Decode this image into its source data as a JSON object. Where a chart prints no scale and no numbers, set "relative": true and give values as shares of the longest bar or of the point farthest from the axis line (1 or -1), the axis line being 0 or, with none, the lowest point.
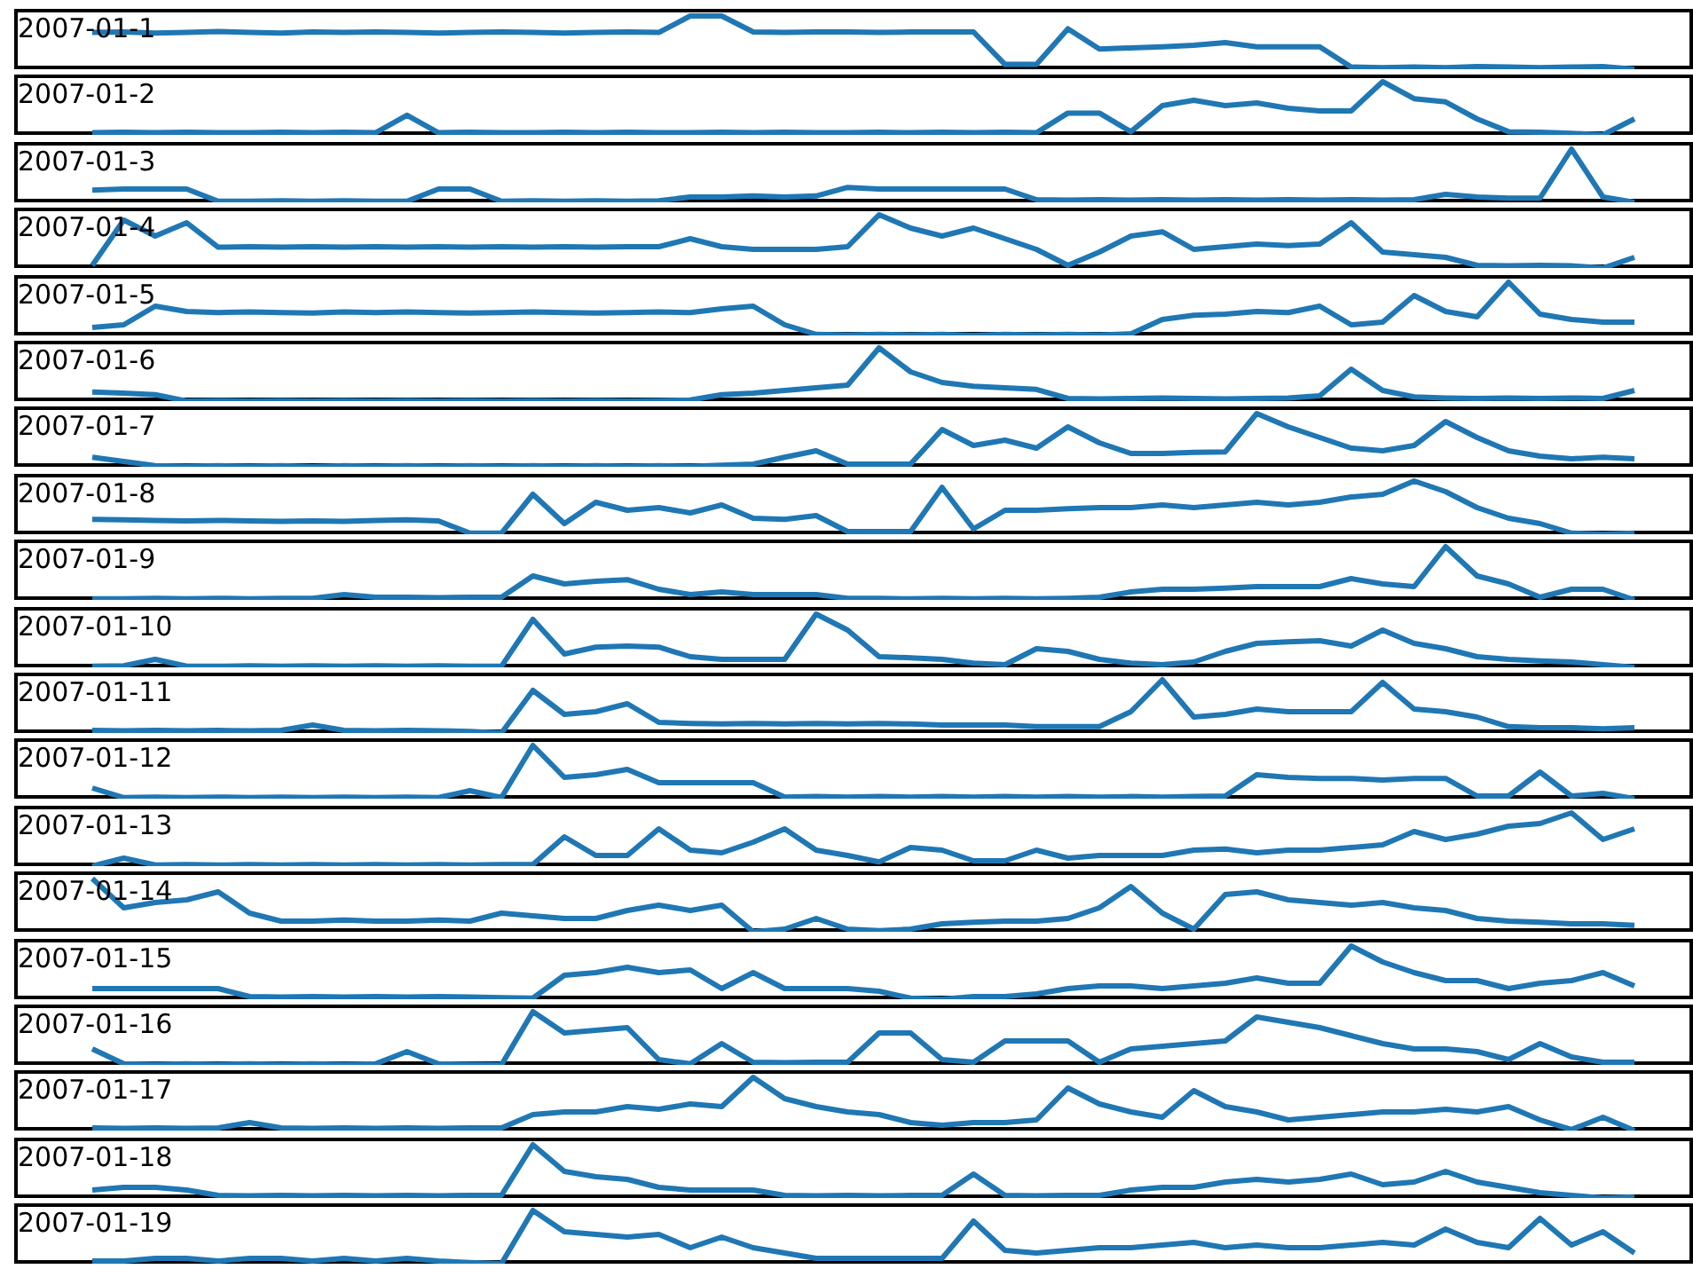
{
  "chart_data": [
    {
      "type": "line",
      "title": "2007-01-1",
      "relative": true,
      "color": "#1f77b4",
      "categories": [
        null,
        null,
        null,
        null,
        null,
        null,
        null,
        null,
        null,
        null,
        null,
        null,
        null,
        null,
        null,
        null,
        null,
        null,
        null,
        null,
        null,
        null,
        null,
        null,
        null,
        null,
        null,
        null,
        null,
        null,
        null,
        null,
        null,
        null,
        null,
        null,
        null,
        null,
        null,
        null,
        null,
        null,
        null,
        null,
        null,
        null,
        null,
        null,
        null,
        null
      ],
      "values": [
        0.69,
        0.7,
        0.68,
        0.69,
        0.71,
        0.69,
        0.68,
        0.7,
        0.69,
        0.7,
        0.69,
        0.68,
        0.69,
        0.7,
        0.69,
        0.68,
        0.69,
        0.7,
        0.69,
        1,
        1,
        0.7,
        0.69,
        0.7,
        0.7,
        0.69,
        0.7,
        0.7,
        0.7,
        0.09,
        0.09,
        0.76,
        0.38,
        0.4,
        0.42,
        0.45,
        0.5,
        0.42,
        0.42,
        0.42,
        0.04,
        0.03,
        0.04,
        0.03,
        0.05,
        0.04,
        0.03,
        0.04,
        0.05,
        0
      ]
    },
    {
      "type": "line",
      "title": "2007-01-2",
      "relative": true,
      "color": "#1f77b4",
      "categories": [
        null,
        null,
        null,
        null,
        null,
        null,
        null,
        null,
        null,
        null,
        null,
        null,
        null,
        null,
        null,
        null,
        null,
        null,
        null,
        null,
        null,
        null,
        null,
        null,
        null,
        null,
        null,
        null,
        null,
        null,
        null,
        null,
        null,
        null,
        null,
        null,
        null,
        null,
        null,
        null,
        null,
        null,
        null,
        null,
        null,
        null,
        null,
        null,
        null,
        null
      ],
      "values": [
        0.04,
        0.05,
        0.04,
        0.05,
        0.04,
        0.04,
        0.05,
        0.04,
        0.05,
        0.04,
        0.37,
        0.04,
        0.05,
        0.04,
        0.04,
        0.05,
        0.04,
        0.05,
        0.04,
        0.04,
        0.05,
        0.04,
        0.05,
        0.04,
        0.04,
        0.05,
        0.04,
        0.05,
        0.04,
        0.05,
        0.04,
        0.41,
        0.41,
        0.06,
        0.55,
        0.65,
        0.55,
        0.6,
        0.5,
        0.45,
        0.45,
        1,
        0.68,
        0.62,
        0.3,
        0.06,
        0.05,
        0.03,
        0,
        0.3
      ]
    },
    {
      "type": "line",
      "title": "2007-01-3",
      "relative": true,
      "color": "#1f77b4",
      "categories": [
        null,
        null,
        null,
        null,
        null,
        null,
        null,
        null,
        null,
        null,
        null,
        null,
        null,
        null,
        null,
        null,
        null,
        null,
        null,
        null,
        null,
        null,
        null,
        null,
        null,
        null,
        null,
        null,
        null,
        null,
        null,
        null,
        null,
        null,
        null,
        null,
        null,
        null,
        null,
        null,
        null,
        null,
        null,
        null,
        null,
        null,
        null,
        null,
        null,
        null
      ],
      "values": [
        0.23,
        0.25,
        0.25,
        0.25,
        0.02,
        0.02,
        0.03,
        0.02,
        0.03,
        0.02,
        0.02,
        0.25,
        0.25,
        0.02,
        0.03,
        0.02,
        0.03,
        0.02,
        0.03,
        0.1,
        0.1,
        0.12,
        0.1,
        0.12,
        0.28,
        0.25,
        0.25,
        0.25,
        0.25,
        0.25,
        0.05,
        0.04,
        0.05,
        0.04,
        0.05,
        0.04,
        0.05,
        0.04,
        0.05,
        0.04,
        0.05,
        0.04,
        0.05,
        0.15,
        0.1,
        0.08,
        0.08,
        1,
        0.1,
        0
      ]
    },
    {
      "type": "line",
      "title": "2007-01-4",
      "relative": true,
      "color": "#1f77b4",
      "categories": [
        null,
        null,
        null,
        null,
        null,
        null,
        null,
        null,
        null,
        null,
        null,
        null,
        null,
        null,
        null,
        null,
        null,
        null,
        null,
        null,
        null,
        null,
        null,
        null,
        null,
        null,
        null,
        null,
        null,
        null,
        null,
        null,
        null,
        null,
        null,
        null,
        null,
        null,
        null,
        null,
        null,
        null,
        null,
        null,
        null,
        null,
        null,
        null,
        null,
        null
      ],
      "values": [
        0.05,
        0.9,
        0.6,
        0.85,
        0.39,
        0.4,
        0.39,
        0.4,
        0.39,
        0.4,
        0.39,
        0.4,
        0.39,
        0.4,
        0.39,
        0.4,
        0.39,
        0.4,
        0.4,
        0.55,
        0.4,
        0.35,
        0.35,
        0.35,
        0.4,
        1,
        0.75,
        0.6,
        0.75,
        0.55,
        0.35,
        0.05,
        0.3,
        0.6,
        0.68,
        0.35,
        0.4,
        0.45,
        0.42,
        0.45,
        0.85,
        0.3,
        0.25,
        0.2,
        0.05,
        0.04,
        0.05,
        0.04,
        0,
        0.2
      ]
    },
    {
      "type": "line",
      "title": "2007-01-5",
      "relative": true,
      "color": "#1f77b4",
      "categories": [
        null,
        null,
        null,
        null,
        null,
        null,
        null,
        null,
        null,
        null,
        null,
        null,
        null,
        null,
        null,
        null,
        null,
        null,
        null,
        null,
        null,
        null,
        null,
        null,
        null,
        null,
        null,
        null,
        null,
        null,
        null,
        null,
        null,
        null,
        null,
        null,
        null,
        null,
        null,
        null,
        null,
        null,
        null,
        null,
        null,
        null,
        null,
        null,
        null,
        null
      ],
      "values": [
        0.15,
        0.2,
        0.55,
        0.45,
        0.43,
        0.44,
        0.43,
        0.42,
        0.44,
        0.43,
        0.44,
        0.43,
        0.42,
        0.43,
        0.44,
        0.43,
        0.42,
        0.43,
        0.44,
        0.43,
        0.5,
        0.55,
        0.2,
        0.02,
        0.01,
        0.02,
        0.01,
        0.02,
        0,
        0.02,
        0.01,
        0.02,
        0.01,
        0.03,
        0.3,
        0.38,
        0.4,
        0.45,
        0.43,
        0.55,
        0.2,
        0.25,
        0.75,
        0.45,
        0.35,
        1,
        0.4,
        0.3,
        0.25,
        0.25
      ]
    },
    {
      "type": "line",
      "title": "2007-01-6",
      "relative": true,
      "color": "#1f77b4",
      "categories": [
        null,
        null,
        null,
        null,
        null,
        null,
        null,
        null,
        null,
        null,
        null,
        null,
        null,
        null,
        null,
        null,
        null,
        null,
        null,
        null,
        null,
        null,
        null,
        null,
        null,
        null,
        null,
        null,
        null,
        null,
        null,
        null,
        null,
        null,
        null,
        null,
        null,
        null,
        null,
        null,
        null,
        null,
        null,
        null,
        null,
        null,
        null,
        null,
        null,
        null
      ],
      "values": [
        0.17,
        0.15,
        0.12,
        0,
        0.01,
        0,
        0.01,
        0,
        0.01,
        0,
        0.01,
        0,
        0.01,
        0,
        0.01,
        0,
        0.01,
        0,
        0.01,
        0.02,
        0.12,
        0.15,
        0.2,
        0.25,
        0.3,
        1,
        0.55,
        0.35,
        0.28,
        0.25,
        0.22,
        0.05,
        0.04,
        0.05,
        0.06,
        0.05,
        0.04,
        0.05,
        0.06,
        0.1,
        0.6,
        0.2,
        0.08,
        0.06,
        0.05,
        0.06,
        0.05,
        0.06,
        0.05,
        0.2
      ]
    },
    {
      "type": "line",
      "title": "2007-01-7",
      "relative": true,
      "color": "#1f77b4",
      "categories": [
        null,
        null,
        null,
        null,
        null,
        null,
        null,
        null,
        null,
        null,
        null,
        null,
        null,
        null,
        null,
        null,
        null,
        null,
        null,
        null,
        null,
        null,
        null,
        null,
        null,
        null,
        null,
        null,
        null,
        null,
        null,
        null,
        null,
        null,
        null,
        null,
        null,
        null,
        null,
        null,
        null,
        null,
        null,
        null,
        null,
        null,
        null,
        null,
        null,
        null
      ],
      "values": [
        0.18,
        0.1,
        0.02,
        0.01,
        0.02,
        0.01,
        0.02,
        0,
        0.02,
        0.01,
        0.02,
        0.01,
        0.02,
        0.01,
        0.02,
        0.01,
        0.02,
        0.01,
        0.02,
        0.01,
        0.03,
        0.05,
        0.18,
        0.3,
        0.05,
        0.05,
        0.05,
        0.7,
        0.4,
        0.5,
        0.35,
        0.75,
        0.45,
        0.25,
        0.25,
        0.27,
        0.28,
        1,
        0.75,
        0.55,
        0.35,
        0.3,
        0.4,
        0.85,
        0.55,
        0.3,
        0.2,
        0.15,
        0.18,
        0.15
      ]
    },
    {
      "type": "line",
      "title": "2007-01-8",
      "relative": true,
      "color": "#1f77b4",
      "categories": [
        null,
        null,
        null,
        null,
        null,
        null,
        null,
        null,
        null,
        null,
        null,
        null,
        null,
        null,
        null,
        null,
        null,
        null,
        null,
        null,
        null,
        null,
        null,
        null,
        null,
        null,
        null,
        null,
        null,
        null,
        null,
        null,
        null,
        null,
        null,
        null,
        null,
        null,
        null,
        null,
        null,
        null,
        null,
        null,
        null,
        null,
        null,
        null,
        null,
        null
      ],
      "values": [
        0.28,
        0.27,
        0.26,
        0.25,
        0.26,
        0.25,
        0.24,
        0.25,
        0.24,
        0.26,
        0.27,
        0.25,
        0.02,
        0.02,
        0.75,
        0.2,
        0.6,
        0.45,
        0.5,
        0.4,
        0.55,
        0.3,
        0.28,
        0.35,
        0.05,
        0.05,
        0.05,
        0.88,
        0.1,
        0.45,
        0.45,
        0.48,
        0.5,
        0.5,
        0.55,
        0.5,
        0.55,
        0.6,
        0.55,
        0.6,
        0.7,
        0.75,
        1,
        0.8,
        0.5,
        0.3,
        0.2,
        0.02,
        0,
        0.02
      ]
    },
    {
      "type": "line",
      "title": "2007-01-9",
      "relative": true,
      "color": "#1f77b4",
      "categories": [
        null,
        null,
        null,
        null,
        null,
        null,
        null,
        null,
        null,
        null,
        null,
        null,
        null,
        null,
        null,
        null,
        null,
        null,
        null,
        null,
        null,
        null,
        null,
        null,
        null,
        null,
        null,
        null,
        null,
        null,
        null,
        null,
        null,
        null,
        null,
        null,
        null,
        null,
        null,
        null,
        null,
        null,
        null,
        null,
        null,
        null,
        null,
        null,
        null,
        null
      ],
      "values": [
        0.02,
        0.02,
        0.03,
        0.02,
        0.03,
        0.02,
        0.03,
        0.03,
        0.1,
        0.05,
        0.05,
        0.04,
        0.05,
        0.05,
        0.45,
        0.3,
        0.35,
        0.38,
        0.2,
        0.1,
        0.15,
        0.1,
        0.1,
        0.1,
        0.03,
        0.03,
        0.02,
        0.03,
        0.02,
        0.03,
        0.02,
        0.03,
        0.05,
        0.15,
        0.2,
        0.2,
        0.22,
        0.25,
        0.25,
        0.25,
        0.4,
        0.3,
        0.25,
        1,
        0.45,
        0.3,
        0.05,
        0.2,
        0.2,
        0
      ]
    },
    {
      "type": "line",
      "title": "2007-01-10",
      "relative": true,
      "color": "#1f77b4",
      "categories": [
        null,
        null,
        null,
        null,
        null,
        null,
        null,
        null,
        null,
        null,
        null,
        null,
        null,
        null,
        null,
        null,
        null,
        null,
        null,
        null,
        null,
        null,
        null,
        null,
        null,
        null,
        null,
        null,
        null,
        null,
        null,
        null,
        null,
        null,
        null,
        null,
        null,
        null,
        null,
        null,
        null,
        null,
        null,
        null,
        null,
        null,
        null,
        null,
        null,
        null
      ],
      "values": [
        0.02,
        0.03,
        0.15,
        0.02,
        0.02,
        0.03,
        0.02,
        0.03,
        0.02,
        0.03,
        0.02,
        0.03,
        0.02,
        0.02,
        0.9,
        0.25,
        0.38,
        0.4,
        0.38,
        0.2,
        0.15,
        0.15,
        0.15,
        1,
        0.7,
        0.2,
        0.18,
        0.15,
        0.08,
        0.05,
        0.35,
        0.3,
        0.15,
        0.08,
        0.05,
        0.1,
        0.3,
        0.45,
        0.48,
        0.5,
        0.4,
        0.7,
        0.45,
        0.35,
        0.2,
        0.15,
        0.12,
        0.1,
        0.05,
        0
      ]
    },
    {
      "type": "line",
      "title": "2007-01-11",
      "relative": true,
      "color": "#1f77b4",
      "categories": [
        null,
        null,
        null,
        null,
        null,
        null,
        null,
        null,
        null,
        null,
        null,
        null,
        null,
        null,
        null,
        null,
        null,
        null,
        null,
        null,
        null,
        null,
        null,
        null,
        null,
        null,
        null,
        null,
        null,
        null,
        null,
        null,
        null,
        null,
        null,
        null,
        null,
        null,
        null,
        null,
        null,
        null,
        null,
        null,
        null,
        null,
        null,
        null,
        null,
        null
      ],
      "values": [
        0.05,
        0.04,
        0.05,
        0.04,
        0.05,
        0.04,
        0.05,
        0.15,
        0.05,
        0.04,
        0.05,
        0.04,
        0.03,
        0,
        0.8,
        0.35,
        0.4,
        0.55,
        0.2,
        0.18,
        0.17,
        0.18,
        0.17,
        0.18,
        0.17,
        0.18,
        0.17,
        0.15,
        0.15,
        0.15,
        0.12,
        0.12,
        0.12,
        0.4,
        1,
        0.3,
        0.35,
        0.45,
        0.4,
        0.4,
        0.4,
        0.95,
        0.45,
        0.4,
        0.3,
        0.12,
        0.1,
        0.1,
        0.08,
        0.1
      ]
    },
    {
      "type": "line",
      "title": "2007-01-12",
      "relative": true,
      "color": "#1f77b4",
      "categories": [
        null,
        null,
        null,
        null,
        null,
        null,
        null,
        null,
        null,
        null,
        null,
        null,
        null,
        null,
        null,
        null,
        null,
        null,
        null,
        null,
        null,
        null,
        null,
        null,
        null,
        null,
        null,
        null,
        null,
        null,
        null,
        null,
        null,
        null,
        null,
        null,
        null,
        null,
        null,
        null,
        null,
        null,
        null,
        null,
        null,
        null,
        null,
        null,
        null,
        null
      ],
      "values": [
        0.2,
        0.02,
        0.03,
        0.02,
        0.03,
        0.02,
        0.03,
        0.02,
        0.03,
        0.02,
        0.03,
        0.02,
        0.15,
        0.02,
        1,
        0.4,
        0.45,
        0.55,
        0.3,
        0.3,
        0.3,
        0.3,
        0.03,
        0.04,
        0.03,
        0.04,
        0.03,
        0.04,
        0.03,
        0.04,
        0.03,
        0.04,
        0.03,
        0.04,
        0.03,
        0.04,
        0.05,
        0.45,
        0.4,
        0.38,
        0.38,
        0.35,
        0.38,
        0.38,
        0.05,
        0.05,
        0.5,
        0.05,
        0.1,
        0
      ]
    },
    {
      "type": "line",
      "title": "2007-01-13",
      "relative": true,
      "color": "#1f77b4",
      "categories": [
        null,
        null,
        null,
        null,
        null,
        null,
        null,
        null,
        null,
        null,
        null,
        null,
        null,
        null,
        null,
        null,
        null,
        null,
        null,
        null,
        null,
        null,
        null,
        null,
        null,
        null,
        null,
        null,
        null,
        null,
        null,
        null,
        null,
        null,
        null,
        null,
        null,
        null,
        null,
        null,
        null,
        null,
        null,
        null,
        null,
        null,
        null,
        null,
        null,
        null
      ],
      "values": [
        0,
        0.15,
        0.02,
        0.03,
        0.02,
        0.03,
        0.02,
        0.03,
        0.02,
        0.03,
        0.02,
        0.03,
        0.02,
        0.03,
        0.03,
        0.55,
        0.2,
        0.2,
        0.7,
        0.3,
        0.25,
        0.45,
        0.7,
        0.3,
        0.2,
        0.08,
        0.35,
        0.3,
        0.1,
        0.1,
        0.3,
        0.15,
        0.2,
        0.2,
        0.2,
        0.3,
        0.32,
        0.25,
        0.3,
        0.3,
        0.35,
        0.4,
        0.65,
        0.5,
        0.6,
        0.75,
        0.8,
        1,
        0.5,
        0.7
      ]
    },
    {
      "type": "line",
      "title": "2007-01-14",
      "relative": true,
      "color": "#1f77b4",
      "categories": [
        null,
        null,
        null,
        null,
        null,
        null,
        null,
        null,
        null,
        null,
        null,
        null,
        null,
        null,
        null,
        null,
        null,
        null,
        null,
        null,
        null,
        null,
        null,
        null,
        null,
        null,
        null,
        null,
        null,
        null,
        null,
        null,
        null,
        null,
        null,
        null,
        null,
        null,
        null,
        null,
        null,
        null,
        null,
        null,
        null,
        null,
        null,
        null,
        null,
        null
      ],
      "values": [
        1,
        0.45,
        0.55,
        0.6,
        0.75,
        0.35,
        0.2,
        0.2,
        0.22,
        0.2,
        0.2,
        0.22,
        0.2,
        0.35,
        0.3,
        0.25,
        0.25,
        0.4,
        0.5,
        0.4,
        0.5,
        0,
        0.05,
        0.25,
        0.05,
        0.02,
        0.05,
        0.15,
        0.18,
        0.2,
        0.2,
        0.25,
        0.45,
        0.85,
        0.35,
        0.05,
        0.7,
        0.75,
        0.6,
        0.55,
        0.5,
        0.55,
        0.45,
        0.4,
        0.25,
        0.2,
        0.18,
        0.15,
        0.15,
        0.12
      ]
    },
    {
      "type": "line",
      "title": "2007-01-15",
      "relative": true,
      "color": "#1f77b4",
      "categories": [
        null,
        null,
        null,
        null,
        null,
        null,
        null,
        null,
        null,
        null,
        null,
        null,
        null,
        null,
        null,
        null,
        null,
        null,
        null,
        null,
        null,
        null,
        null,
        null,
        null,
        null,
        null,
        null,
        null,
        null,
        null,
        null,
        null,
        null,
        null,
        null,
        null,
        null,
        null,
        null,
        null,
        null,
        null,
        null,
        null,
        null,
        null,
        null,
        null,
        null
      ],
      "values": [
        0.2,
        0.2,
        0.2,
        0.2,
        0.2,
        0.05,
        0.04,
        0.05,
        0.04,
        0.05,
        0.04,
        0.05,
        0.04,
        0.03,
        0.02,
        0.45,
        0.5,
        0.6,
        0.5,
        0.55,
        0.2,
        0.5,
        0.2,
        0.2,
        0.2,
        0.15,
        0.02,
        0,
        0.05,
        0.05,
        0.1,
        0.2,
        0.25,
        0.25,
        0.2,
        0.25,
        0.3,
        0.4,
        0.3,
        0.3,
        1,
        0.7,
        0.5,
        0.35,
        0.35,
        0.2,
        0.3,
        0.35,
        0.5,
        0.25
      ]
    },
    {
      "type": "line",
      "title": "2007-01-16",
      "relative": true,
      "color": "#1f77b4",
      "categories": [
        null,
        null,
        null,
        null,
        null,
        null,
        null,
        null,
        null,
        null,
        null,
        null,
        null,
        null,
        null,
        null,
        null,
        null,
        null,
        null,
        null,
        null,
        null,
        null,
        null,
        null,
        null,
        null,
        null,
        null,
        null,
        null,
        null,
        null,
        null,
        null,
        null,
        null,
        null,
        null,
        null,
        null,
        null,
        null,
        null,
        null,
        null,
        null,
        null,
        null
      ],
      "values": [
        0.3,
        0.02,
        0.01,
        0.02,
        0.01,
        0.02,
        0.01,
        0.02,
        0.01,
        0.02,
        0.25,
        0.02,
        0.01,
        0,
        1,
        0.6,
        0.65,
        0.7,
        0.1,
        0.02,
        0.4,
        0.05,
        0.04,
        0.05,
        0.05,
        0.6,
        0.6,
        0.1,
        0.05,
        0.45,
        0.45,
        0.45,
        0.05,
        0.3,
        0.35,
        0.4,
        0.45,
        0.9,
        0.8,
        0.7,
        0.55,
        0.4,
        0.3,
        0.3,
        0.25,
        0.1,
        0.4,
        0.15,
        0.05,
        0.05
      ]
    },
    {
      "type": "line",
      "title": "2007-01-17",
      "relative": true,
      "color": "#1f77b4",
      "categories": [
        null,
        null,
        null,
        null,
        null,
        null,
        null,
        null,
        null,
        null,
        null,
        null,
        null,
        null,
        null,
        null,
        null,
        null,
        null,
        null,
        null,
        null,
        null,
        null,
        null,
        null,
        null,
        null,
        null,
        null,
        null,
        null,
        null,
        null,
        null,
        null,
        null,
        null,
        null,
        null,
        null,
        null,
        null,
        null,
        null,
        null,
        null,
        null,
        null,
        null
      ],
      "values": [
        0.05,
        0.04,
        0.05,
        0.04,
        0.05,
        0.15,
        0.05,
        0.04,
        0.05,
        0.04,
        0.05,
        0.04,
        0.05,
        0.05,
        0.3,
        0.35,
        0.35,
        0.45,
        0.4,
        0.5,
        0.45,
        1,
        0.6,
        0.45,
        0.35,
        0.3,
        0.15,
        0.1,
        0.15,
        0.15,
        0.2,
        0.8,
        0.5,
        0.35,
        0.25,
        0.75,
        0.45,
        0.35,
        0.2,
        0.25,
        0.3,
        0.35,
        0.35,
        0.4,
        0.35,
        0.45,
        0.2,
        0.02,
        0.25,
        0
      ]
    },
    {
      "type": "line",
      "title": "2007-01-18",
      "relative": true,
      "color": "#1f77b4",
      "categories": [
        null,
        null,
        null,
        null,
        null,
        null,
        null,
        null,
        null,
        null,
        null,
        null,
        null,
        null,
        null,
        null,
        null,
        null,
        null,
        null,
        null,
        null,
        null,
        null,
        null,
        null,
        null,
        null,
        null,
        null,
        null,
        null,
        null,
        null,
        null,
        null,
        null,
        null,
        null,
        null,
        null,
        null,
        null,
        null,
        null,
        null,
        null,
        null,
        null,
        null
      ],
      "values": [
        0.15,
        0.2,
        0.2,
        0.15,
        0.05,
        0.04,
        0.05,
        0.04,
        0.05,
        0.04,
        0.05,
        0.04,
        0.05,
        0.05,
        1,
        0.5,
        0.4,
        0.35,
        0.2,
        0.15,
        0.15,
        0.15,
        0.05,
        0.04,
        0.05,
        0.04,
        0.05,
        0.05,
        0.45,
        0.05,
        0.04,
        0.05,
        0.05,
        0.15,
        0.2,
        0.2,
        0.3,
        0.35,
        0.3,
        0.35,
        0.45,
        0.25,
        0.3,
        0.5,
        0.3,
        0.2,
        0.1,
        0.05,
        0,
        0.02
      ]
    },
    {
      "type": "line",
      "title": "2007-01-19",
      "relative": true,
      "color": "#1f77b4",
      "categories": [
        null,
        null,
        null,
        null,
        null,
        null,
        null,
        null,
        null,
        null,
        null,
        null,
        null,
        null,
        null,
        null,
        null,
        null,
        null,
        null,
        null,
        null,
        null,
        null,
        null,
        null,
        null,
        null,
        null,
        null,
        null,
        null,
        null,
        null,
        null,
        null,
        null,
        null,
        null,
        null,
        null,
        null,
        null,
        null,
        null,
        null,
        null,
        null,
        null,
        null
      ],
      "values": [
        0.05,
        0.05,
        0.1,
        0.1,
        0.05,
        0.1,
        0.1,
        0.05,
        0.1,
        0.05,
        0.1,
        0.05,
        0.02,
        0,
        1,
        0.6,
        0.55,
        0.5,
        0.55,
        0.3,
        0.5,
        0.3,
        0.2,
        0.1,
        0.1,
        0.1,
        0.1,
        0.1,
        0.8,
        0.25,
        0.2,
        0.25,
        0.3,
        0.3,
        0.35,
        0.4,
        0.3,
        0.35,
        0.3,
        0.3,
        0.35,
        0.4,
        0.35,
        0.65,
        0.4,
        0.3,
        0.85,
        0.35,
        0.6,
        0.2
      ]
    }
  ]
}
